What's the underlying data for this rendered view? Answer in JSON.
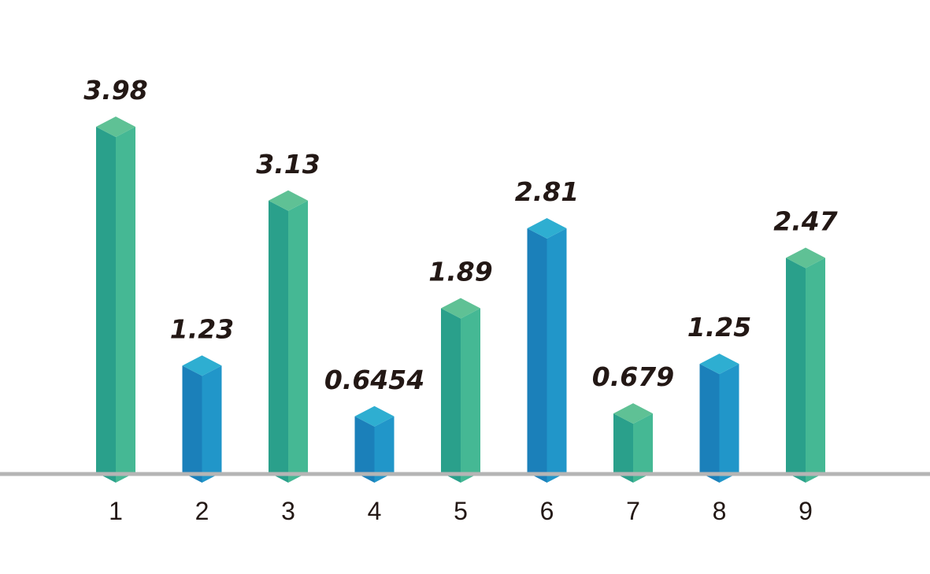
{
  "chart_data": {
    "type": "bar",
    "categories": [
      "1",
      "2",
      "3",
      "4",
      "5",
      "6",
      "7",
      "8",
      "9"
    ],
    "values": [
      3.98,
      1.23,
      3.13,
      0.6454,
      1.89,
      2.81,
      0.679,
      1.25,
      2.47
    ],
    "data_labels": [
      "3.98",
      "1.23",
      "3.13",
      "0.6454",
      "1.89",
      "2.81",
      "0.679",
      "1.25",
      "2.47"
    ],
    "bar_colors": [
      "green",
      "blue",
      "green",
      "blue",
      "green",
      "blue",
      "green",
      "blue",
      "green"
    ],
    "title": "",
    "xlabel": "",
    "ylabel": "",
    "ylim": [
      0,
      4
    ],
    "grid": false,
    "legend": "none",
    "style": "3d-isometric-columns",
    "palette": {
      "green": {
        "left": "#2aa08b",
        "right": "#45b894",
        "top": "#5fc195"
      },
      "blue": {
        "left": "#1b80ba",
        "right": "#2196c9",
        "top": "#2eaed1"
      },
      "axis": "#b5b5b5",
      "text": "#231815"
    }
  }
}
